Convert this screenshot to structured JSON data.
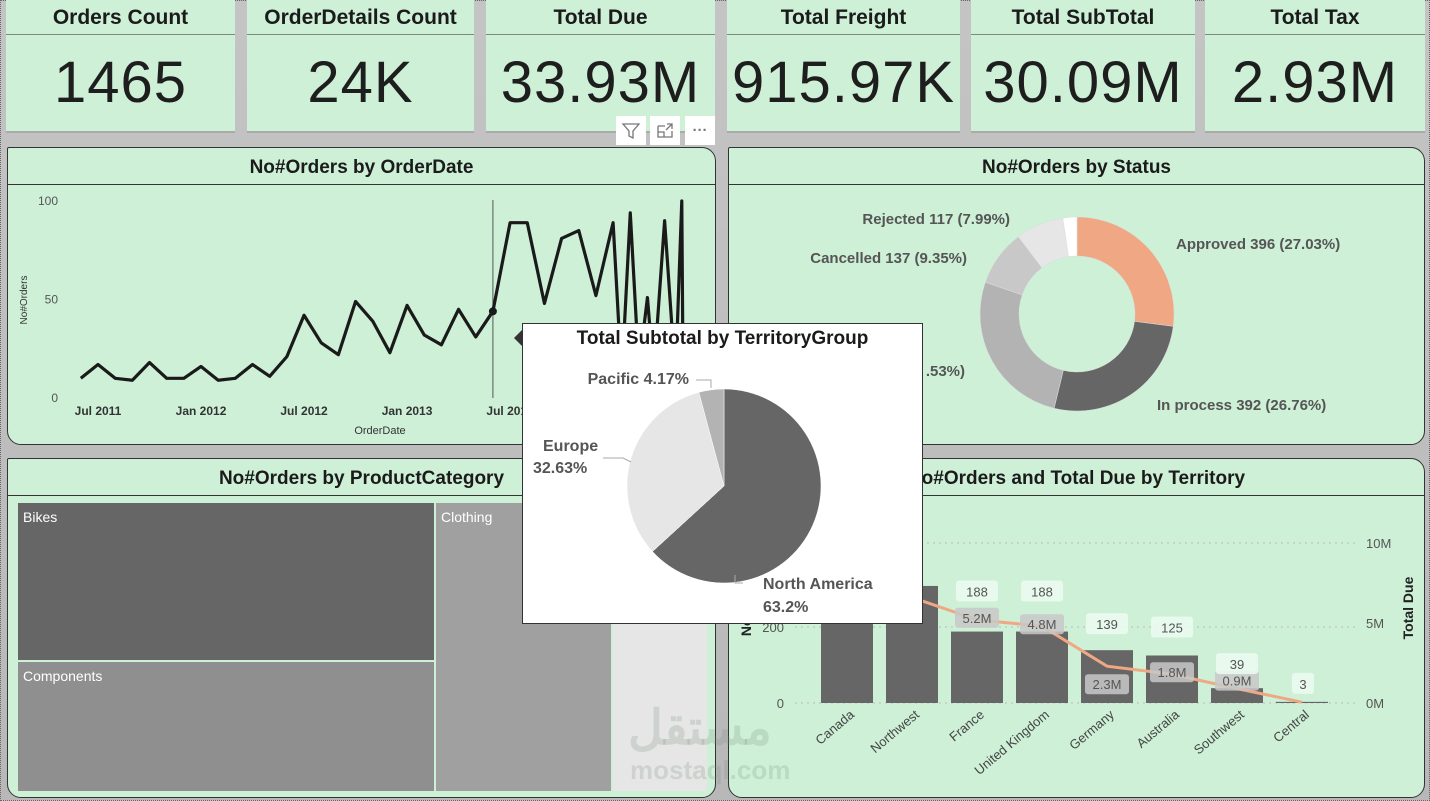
{
  "cards": [
    {
      "title": "Orders Count",
      "value": "1465"
    },
    {
      "title": "OrderDetails Count",
      "value": "24K"
    },
    {
      "title": "Total Due",
      "value": "33.93M"
    },
    {
      "title": "Total Freight",
      "value": "915.97K"
    },
    {
      "title": "Total SubTotal",
      "value": "30.09M"
    },
    {
      "title": "Total Tax",
      "value": "2.93M"
    }
  ],
  "visual_header": {
    "icons": [
      "filter-icon",
      "focus-mode-icon",
      "more-options-icon"
    ],
    "more_label": "···"
  },
  "colors": {
    "panel_bg": "#cdf0d7",
    "accent": "#f0a783",
    "dark": "#666666"
  },
  "watermark": {
    "arabic": "مستقل",
    "latin": "mostaql.com"
  },
  "chart_data": [
    {
      "type": "line",
      "title": "No#Orders by OrderDate",
      "xlabel": "OrderDate",
      "ylabel": "No#Orders",
      "ylim": [
        0,
        100
      ],
      "yticks": [
        "0",
        "50",
        "100"
      ],
      "xticks": [
        {
          "label": "Jul 2011",
          "date": "2011-07-01"
        },
        {
          "label": "Jan 2012",
          "date": "2012-01-01"
        },
        {
          "label": "Jul 2012",
          "date": "2012-07-01"
        },
        {
          "label": "Jan 2013",
          "date": "2013-01-01"
        },
        {
          "label": "Jul 2013",
          "date": "2013-07-01"
        }
      ],
      "highlight": "2013-06-01",
      "points": [
        [
          "2011-06-01",
          10
        ],
        [
          "2011-07-01",
          17
        ],
        [
          "2011-08-01",
          10
        ],
        [
          "2011-09-01",
          9
        ],
        [
          "2011-10-01",
          18
        ],
        [
          "2011-11-01",
          10
        ],
        [
          "2011-12-01",
          10
        ],
        [
          "2012-01-01",
          16
        ],
        [
          "2012-02-01",
          9
        ],
        [
          "2012-03-01",
          10
        ],
        [
          "2012-04-01",
          17
        ],
        [
          "2012-05-01",
          11
        ],
        [
          "2012-06-01",
          21
        ],
        [
          "2012-07-01",
          42
        ],
        [
          "2012-08-01",
          28
        ],
        [
          "2012-09-01",
          22
        ],
        [
          "2012-10-01",
          49
        ],
        [
          "2012-11-01",
          39
        ],
        [
          "2012-12-01",
          23
        ],
        [
          "2013-01-01",
          47
        ],
        [
          "2013-02-01",
          32
        ],
        [
          "2013-03-01",
          27
        ],
        [
          "2013-04-01",
          45
        ],
        [
          "2013-05-01",
          31
        ],
        [
          "2013-06-01",
          44
        ],
        [
          "2013-07-01",
          89
        ],
        [
          "2013-08-01",
          89
        ],
        [
          "2013-09-01",
          48
        ],
        [
          "2013-10-01",
          81
        ],
        [
          "2013-11-01",
          85
        ],
        [
          "2013-12-01",
          52
        ],
        [
          "2014-01-01",
          89
        ],
        [
          "2014-01-16",
          10
        ],
        [
          "2014-02-01",
          94
        ],
        [
          "2014-02-16",
          15
        ],
        [
          "2014-03-01",
          51
        ],
        [
          "2014-03-12",
          12
        ],
        [
          "2014-04-01",
          90
        ],
        [
          "2014-04-20",
          10
        ],
        [
          "2014-05-01",
          100
        ],
        [
          "2014-05-03",
          20
        ]
      ]
    },
    {
      "type": "pie",
      "donut": true,
      "title": "No#Orders by Status",
      "slices": [
        {
          "label": "Approved 396 (27.03%)",
          "value": 27.03,
          "color": "#f0a783"
        },
        {
          "label": "In process 392 (26.76%)",
          "value": 26.76,
          "color": "#666666"
        },
        {
          "label": ".53%)",
          "value": 26.53,
          "color": "#b3b3b3"
        },
        {
          "label": "Cancelled 137 (9.35%)",
          "value": 9.35,
          "color": "#c8c8c8"
        },
        {
          "label": "Rejected 117 (7.99%)",
          "value": 7.99,
          "color": "#e6e6e6"
        },
        {
          "label": "",
          "value": 2.34,
          "color": "#ffffff"
        }
      ]
    },
    {
      "type": "treemap",
      "title": "No#Orders by ProductCategory",
      "items": [
        {
          "label": "Bikes",
          "color": "#666666"
        },
        {
          "label": "Components",
          "color": "#8f8f8f"
        },
        {
          "label": "Clothing",
          "color": "#a0a0a0"
        },
        {
          "label": "",
          "color": "#e6e6e6"
        }
      ]
    },
    {
      "type": "bar+line",
      "title": "No#Orders and Total Due by Territory",
      "ylabel": "No#Orders",
      "y2label": "Total Due",
      "yticks": [
        "0",
        "200"
      ],
      "y2ticks": [
        "0M",
        "5M",
        "10M"
      ],
      "ylim": [
        0,
        420
      ],
      "y2lim": [
        0,
        13
      ],
      "categories": [
        "Canada",
        "Northwest",
        "France",
        "United Kingdom",
        "Germany",
        "Australia",
        "Southwest",
        "Central"
      ],
      "bars": [
        {
          "value": 380,
          "label": ""
        },
        {
          "value": 308,
          "label": ""
        },
        {
          "value": 188,
          "label": "188"
        },
        {
          "value": 188,
          "label": "188"
        },
        {
          "value": 139,
          "label": "139"
        },
        {
          "value": 125,
          "label": "125"
        },
        {
          "value": 39,
          "label": "39"
        },
        {
          "value": 3,
          "label": "3"
        }
      ],
      "line": [
        {
          "value": 9.5,
          "label": ""
        },
        {
          "value": 6.6,
          "label": ""
        },
        {
          "value": 5.2,
          "label": "5.2M"
        },
        {
          "value": 4.8,
          "label": "4.8M"
        },
        {
          "value": 2.3,
          "label": "2.3M"
        },
        {
          "value": 1.8,
          "label": "1.8M"
        },
        {
          "value": 0.9,
          "label": "0.9M"
        },
        {
          "value": 0.05,
          "label": ""
        }
      ]
    },
    {
      "type": "pie",
      "title": "Total Subtotal by TerritoryGroup",
      "slices": [
        {
          "label": "North America",
          "pct": "63.2%",
          "value": 63.2,
          "color": "#666666"
        },
        {
          "label": "Europe",
          "pct": "32.63%",
          "value": 32.63,
          "color": "#e6e6e6"
        },
        {
          "label": "Pacific",
          "pct": "4.17%",
          "value": 4.17,
          "color": "#b3b3b3"
        }
      ]
    }
  ]
}
